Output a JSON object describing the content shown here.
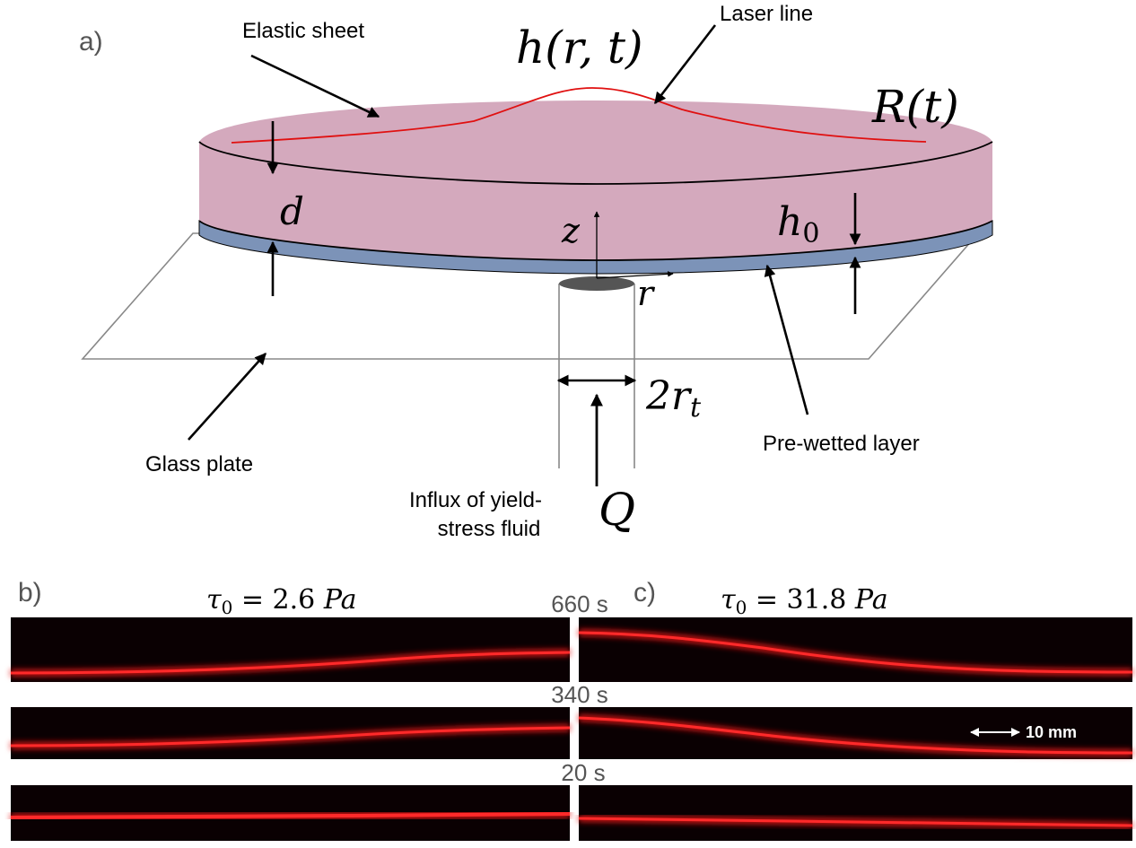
{
  "panel_a": {
    "panel_label": "a)",
    "labels": {
      "elastic_sheet": "Elastic sheet",
      "laser_line": "Laser line",
      "glass_plate": "Glass plate",
      "pre_wetted_layer": "Pre-wetted layer",
      "influx_line1": "Influx of yield-",
      "influx_line2": "stress fluid"
    },
    "math": {
      "h_func": "h(r, t)",
      "R_func": "R(t)",
      "d": "d",
      "z": "z",
      "r": "r",
      "h0_base": "h",
      "h0_sub": "0",
      "two_rt_base": "2r",
      "two_rt_sub": "t",
      "Q": "Q"
    }
  },
  "panel_b": {
    "panel_label": "b)",
    "title_symbol": "τ",
    "title_sub": "0",
    "title_rest": " = 2.6 ",
    "title_unit": "Pa"
  },
  "panel_c": {
    "panel_label": "c)",
    "title_symbol": "τ",
    "title_sub": "0",
    "title_rest": " = 31.8 ",
    "title_unit": "Pa",
    "scale_bar": "10 mm"
  },
  "time_labels": [
    "660 s",
    "340 s",
    "20 s"
  ],
  "colors": {
    "sheet_fill": "#d4a9bd",
    "prewet_fill": "#7c93b8",
    "laser_red": "#e01010",
    "image_bg": "#0a0002",
    "plate_stroke": "#888888",
    "label_gray": "#555555"
  }
}
